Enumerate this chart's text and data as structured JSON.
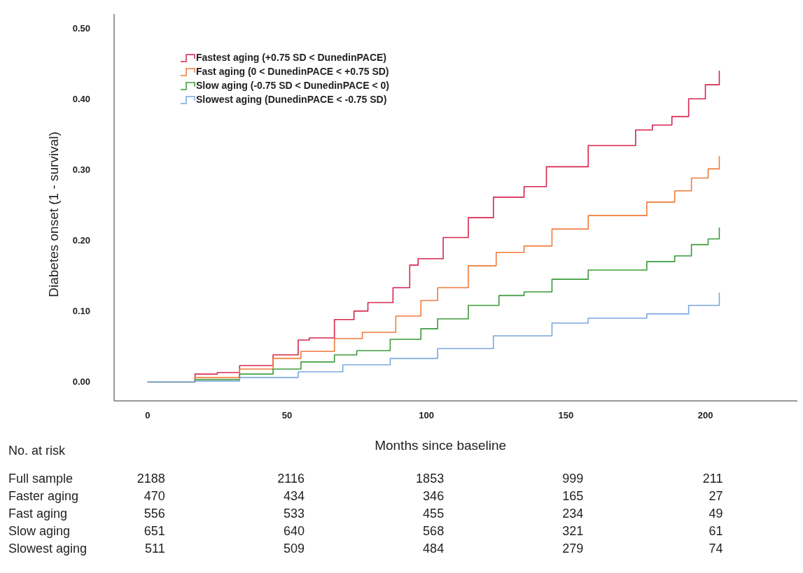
{
  "chart_data": {
    "type": "step",
    "xlabel": "Months since baseline",
    "ylabel": "Diabetes onset (1 - survival)",
    "xlim": [
      -12,
      233
    ],
    "ylim": [
      -0.027,
      0.52
    ],
    "xticks": [
      0,
      50,
      100,
      150,
      200
    ],
    "yticks": [
      {
        "value": 0,
        "label": "0.00"
      },
      {
        "value": 0.1,
        "label": "0.10"
      },
      {
        "value": 0.2,
        "label": "0.20"
      },
      {
        "value": 0.3,
        "label": "0.30"
      },
      {
        "value": 0.4,
        "label": "0.40"
      },
      {
        "value": 0.5,
        "label": "0.50"
      }
    ],
    "grid": false,
    "legend": "top left",
    "line_style": "solid",
    "marker": "none",
    "series": [
      {
        "name": "Fastest aging (+0.75 SD < DunedinPACE)",
        "color": "#d6254f",
        "x": [
          0,
          17,
          25,
          33,
          45,
          54,
          58,
          67,
          74,
          79,
          88,
          94,
          97,
          106,
          115,
          124,
          135,
          143,
          158,
          175,
          181,
          188,
          194,
          200,
          205
        ],
        "values": [
          0,
          0.011,
          0.013,
          0.023,
          0.038,
          0.059,
          0.062,
          0.088,
          0.1,
          0.112,
          0.133,
          0.165,
          0.174,
          0.204,
          0.232,
          0.261,
          0.276,
          0.304,
          0.334,
          0.356,
          0.363,
          0.375,
          0.4,
          0.42,
          0.44
        ]
      },
      {
        "name": "Fast aging (0 < DunedinPACE < +0.75 SD)",
        "color": "#f07a3a",
        "x": [
          0,
          17,
          33,
          45,
          55,
          67,
          77,
          89,
          98,
          104,
          115,
          125,
          135,
          145,
          158,
          179,
          189,
          195,
          201,
          205
        ],
        "values": [
          0,
          0.006,
          0.018,
          0.033,
          0.043,
          0.061,
          0.07,
          0.093,
          0.115,
          0.133,
          0.164,
          0.183,
          0.192,
          0.216,
          0.235,
          0.254,
          0.27,
          0.288,
          0.301,
          0.319
        ]
      },
      {
        "name": "Slow aging (-0.75 SD < DunedinPACE < 0)",
        "color": "#3a9a3a",
        "x": [
          0,
          17,
          33,
          45,
          55,
          67,
          75,
          87,
          98,
          104,
          115,
          126,
          135,
          145,
          158,
          179,
          189,
          195,
          201,
          205
        ],
        "values": [
          0,
          0.003,
          0.011,
          0.018,
          0.028,
          0.038,
          0.044,
          0.06,
          0.075,
          0.089,
          0.108,
          0.122,
          0.127,
          0.145,
          0.158,
          0.17,
          0.178,
          0.194,
          0.202,
          0.218
        ]
      },
      {
        "name": "Slowest aging (DunedinPACE < -0.75 SD)",
        "color": "#7aa6e0",
        "x": [
          0,
          17,
          33,
          54,
          70,
          87,
          104,
          124,
          145,
          158,
          179,
          194,
          205
        ],
        "values": [
          0,
          0.001,
          0.006,
          0.014,
          0.024,
          0.033,
          0.047,
          0.065,
          0.083,
          0.09,
          0.096,
          0.108,
          0.126
        ]
      }
    ],
    "annotations": [
      "No. at risk",
      "Full sample",
      "2188",
      "2116",
      "1853",
      "999",
      "211",
      "Faster aging",
      "470",
      "434",
      "346",
      "165",
      "27",
      "Fast aging",
      "556",
      "533",
      "455",
      "234",
      "49",
      "Slow aging",
      "651",
      "640",
      "568",
      "321",
      "61",
      "Slowest aging",
      "511",
      "509",
      "484",
      "279",
      "74"
    ]
  }
}
